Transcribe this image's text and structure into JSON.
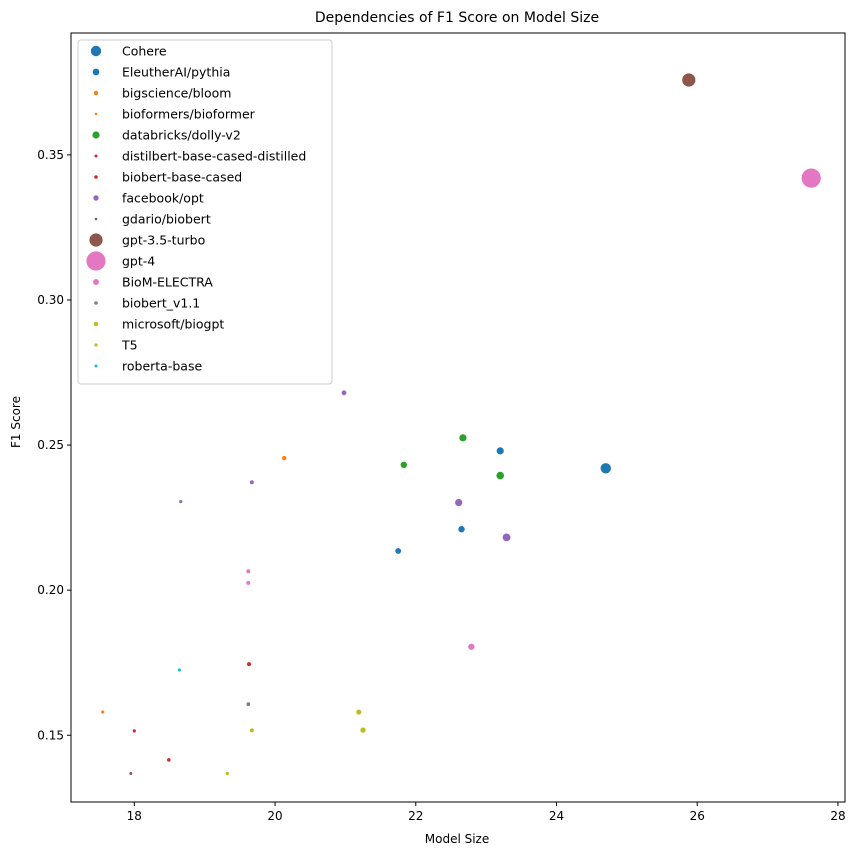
{
  "chart_data": {
    "type": "scatter",
    "title": "Dependencies of F1 Score on Model Size",
    "xlabel": "Model Size",
    "ylabel": "F1 Score",
    "xlim": [
      17.1,
      28.1
    ],
    "ylim": [
      0.127,
      0.392
    ],
    "xticks": [
      18,
      20,
      22,
      24,
      26,
      28
    ],
    "yticks": [
      0.15,
      0.2,
      0.25,
      0.3,
      0.35
    ],
    "xtick_labels": [
      "18",
      "20",
      "22",
      "24",
      "26",
      "28"
    ],
    "ytick_labels": [
      "0.15",
      "0.20",
      "0.25",
      "0.30",
      "0.35"
    ],
    "grid": false,
    "legend_position": "top-left",
    "series": [
      {
        "name": "Cohere",
        "color": "#1f77b4",
        "legend_size": 5.2,
        "points": [
          {
            "x": 24.7,
            "y": 0.242,
            "s": 5.2
          }
        ]
      },
      {
        "name": "EleutherAI/pythia",
        "color": "#1f77b4",
        "legend_size": 3.4,
        "points": [
          {
            "x": 23.2,
            "y": 0.248,
            "s": 3.6
          },
          {
            "x": 22.65,
            "y": 0.221,
            "s": 3.2
          },
          {
            "x": 21.75,
            "y": 0.2135,
            "s": 2.9
          }
        ]
      },
      {
        "name": "bigscience/bloom",
        "color": "#ff7f0e",
        "legend_size": 2.2,
        "points": [
          {
            "x": 20.13,
            "y": 0.2455,
            "s": 2.2
          },
          {
            "x": 17.55,
            "y": 0.158,
            "s": 1.6
          }
        ]
      },
      {
        "name": "bioformers/bioformer",
        "color": "#ff7f0e",
        "legend_size": 1.3,
        "points": []
      },
      {
        "name": "databricks/dolly-v2",
        "color": "#2ca02c",
        "legend_size": 3.6,
        "points": [
          {
            "x": 22.67,
            "y": 0.2525,
            "s": 3.6
          },
          {
            "x": 21.83,
            "y": 0.2432,
            "s": 3.2
          },
          {
            "x": 23.2,
            "y": 0.2395,
            "s": 3.8
          }
        ]
      },
      {
        "name": "distilbert-base-cased-distilled",
        "color": "#d62728",
        "legend_size": 1.5,
        "points": [
          {
            "x": 18.0,
            "y": 0.1515,
            "s": 1.6
          }
        ]
      },
      {
        "name": "biobert-base-cased",
        "color": "#d62728",
        "legend_size": 1.8,
        "points": [
          {
            "x": 19.63,
            "y": 0.1745,
            "s": 2.0
          },
          {
            "x": 18.49,
            "y": 0.1415,
            "s": 1.8
          }
        ]
      },
      {
        "name": "facebook/opt",
        "color": "#9467bd",
        "legend_size": 2.7,
        "points": [
          {
            "x": 20.98,
            "y": 0.268,
            "s": 2.4
          },
          {
            "x": 19.67,
            "y": 0.2372,
            "s": 2.0
          },
          {
            "x": 18.66,
            "y": 0.2305,
            "s": 1.6
          },
          {
            "x": 22.61,
            "y": 0.2302,
            "s": 3.6
          },
          {
            "x": 23.29,
            "y": 0.2182,
            "s": 3.9
          }
        ]
      },
      {
        "name": "gdario/biobert",
        "color": "#8c564b",
        "legend_size": 1.3,
        "points": [
          {
            "x": 17.95,
            "y": 0.1368,
            "s": 1.5
          }
        ]
      },
      {
        "name": "gpt-3.5-turbo",
        "color": "#8c564b",
        "legend_size": 6.6,
        "points": [
          {
            "x": 25.88,
            "y": 0.3758,
            "s": 6.6
          }
        ]
      },
      {
        "name": "gpt-4",
        "color": "#e377c2",
        "legend_size": 9.6,
        "points": [
          {
            "x": 27.62,
            "y": 0.342,
            "s": 9.6
          }
        ]
      },
      {
        "name": "BioM-ELECTRA",
        "color": "#e377c2",
        "legend_size": 3.0,
        "points": [
          {
            "x": 22.79,
            "y": 0.1805,
            "s": 3.1
          },
          {
            "x": 19.62,
            "y": 0.2065,
            "s": 2.0
          },
          {
            "x": 19.62,
            "y": 0.2025,
            "s": 2.0
          }
        ]
      },
      {
        "name": "biobert_v1.1",
        "color": "#7f7f7f",
        "legend_size": 1.8,
        "points": [
          {
            "x": 19.62,
            "y": 0.1607,
            "s": 1.9
          }
        ]
      },
      {
        "name": "microsoft/biogpt",
        "color": "#bcbd22",
        "legend_size": 2.2,
        "points": [
          {
            "x": 21.19,
            "y": 0.158,
            "s": 2.6
          },
          {
            "x": 21.25,
            "y": 0.1518,
            "s": 2.7
          },
          {
            "x": 19.67,
            "y": 0.1517,
            "s": 2.0
          }
        ]
      },
      {
        "name": "T5",
        "color": "#bcbd22",
        "legend_size": 1.6,
        "points": [
          {
            "x": 19.32,
            "y": 0.1368,
            "s": 1.7
          }
        ]
      },
      {
        "name": "roberta-base",
        "color": "#17becf",
        "legend_size": 1.5,
        "points": [
          {
            "x": 18.64,
            "y": 0.1725,
            "s": 1.6
          }
        ]
      }
    ]
  }
}
